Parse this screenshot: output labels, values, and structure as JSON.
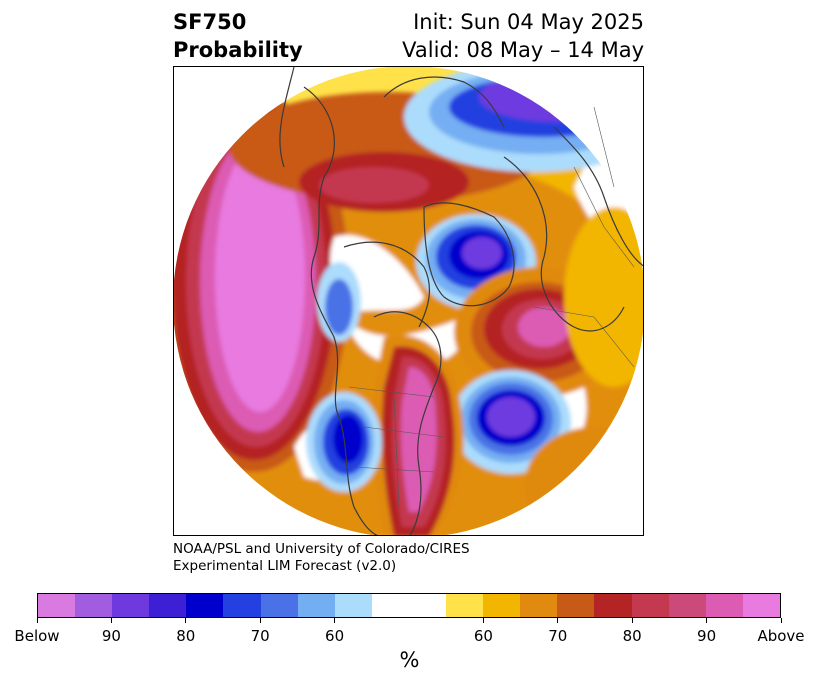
{
  "title": {
    "left_line1": "SF750",
    "left_line2": "Probability",
    "right_line1": "Init: Sun 04 May 2025",
    "right_line2": "Valid: 08 May – 14 May"
  },
  "credit": {
    "line1": "NOAA/PSL and University of Colorado/CIRES",
    "line2": "Experimental LIM Forecast (v2.0)"
  },
  "colorbar": {
    "unit": "%",
    "colors": [
      "#d97ae0",
      "#a25ce0",
      "#6e3ae0",
      "#3d1fd6",
      "#0000cc",
      "#2440e0",
      "#4a72e6",
      "#74aef2",
      "#acdcfc",
      "#ffffff",
      "#ffe14a",
      "#f2b600",
      "#e08a10",
      "#c85a18",
      "#b42424",
      "#c43850",
      "#cc4a7a",
      "#dc5cb4",
      "#e87ae0"
    ],
    "tick_labels": [
      "Below",
      "90",
      "80",
      "70",
      "60",
      "60",
      "70",
      "80",
      "90",
      "Above"
    ]
  },
  "map": {
    "projection": "north-polar-stereographic",
    "palette": {
      "below_strong": "#6e3ae0",
      "below_core": "#0000cc",
      "below_mid": "#4a72e6",
      "below_weak": "#acdcfc",
      "above_weak": "#ffe14a",
      "above_mid": "#f2b600",
      "above_orange": "#e08a10",
      "above_red": "#b42424",
      "above_strong": "#dc5cb4",
      "above_extreme": "#e87ae0"
    }
  }
}
